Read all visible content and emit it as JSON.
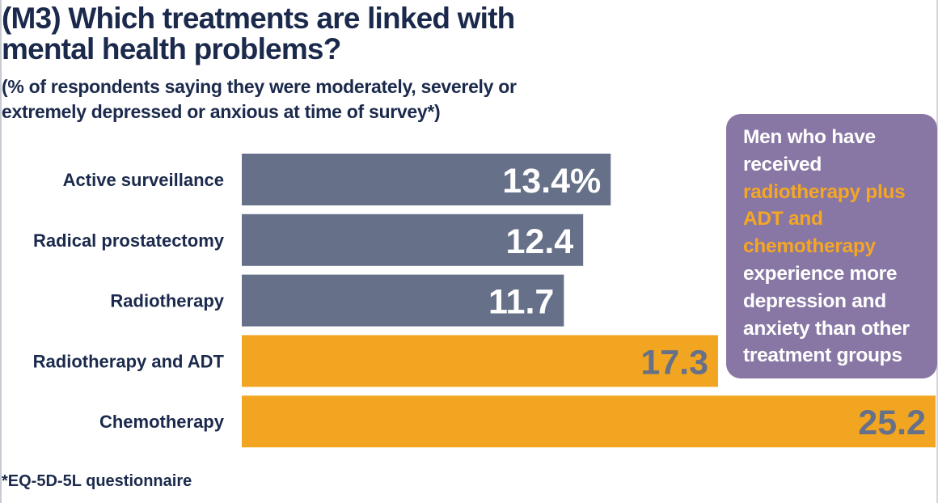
{
  "chart_data": {
    "type": "bar",
    "orientation": "horizontal",
    "title": "(M3) Which treatments are linked with mental health problems?",
    "subtitle": "(% of respondents saying they were moderately, severely or extremely depressed or anxious at time of survey*)",
    "categories": [
      "Active surveillance",
      "Radical prostatectomy",
      "Radiotherapy",
      "Radiotherapy and ADT",
      "Chemotherapy"
    ],
    "values": [
      13.4,
      12.4,
      11.7,
      17.3,
      25.2
    ],
    "data_labels": [
      "13.4%",
      "12.4",
      "11.7",
      "17.3",
      "25.2"
    ],
    "highlighted": [
      false,
      false,
      false,
      true,
      true
    ],
    "xlim": [
      0,
      25.2
    ],
    "xlabel": "",
    "ylabel": "",
    "grid": false,
    "legend": "none",
    "colors": {
      "default_bar": "#667088",
      "highlight_bar": "#f2a521",
      "default_label": "#ffffff",
      "highlight_label": "#667088"
    },
    "footnote": "*EQ-5D-5L questionnaire"
  },
  "callout": {
    "background": "#8877a4",
    "highlight_color": "#f5a623",
    "text_before": "Men who have received ",
    "text_highlight": "radiotherapy plus ADT and chemotherapy",
    "text_after": " experience more depression and anxiety than other treatment groups"
  }
}
